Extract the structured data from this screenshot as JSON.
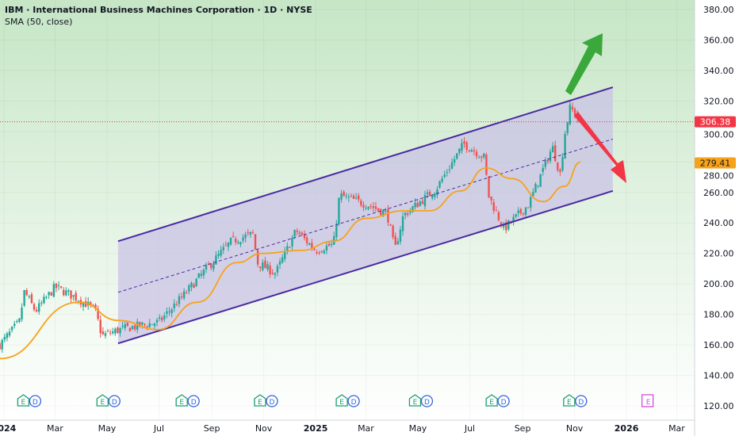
{
  "header": {
    "title": "IBM · International Business Machines Corporation · 1D · NYSE",
    "indicator": "SMA (50, close)"
  },
  "colors": {
    "up": "#26a69a",
    "down": "#ef5350",
    "sma": "#f7a21b",
    "channel": "#4a2aa0",
    "channel_fill": "#c9c3e6",
    "last_price_bg": "#f23645",
    "sma_label_bg": "#f7a21b",
    "arrow_up": "#3aa83a",
    "arrow_down": "#f23645",
    "earnings": "#1a9e6e",
    "dividend": "#3366dd",
    "future_earnings": "#d04ed8"
  },
  "chart_data": {
    "type": "candlestick",
    "ylim": [
      120,
      380
    ],
    "y_ticks": [
      "380.00",
      "360.00",
      "340.00",
      "320.00",
      "300.00",
      "280.00",
      "260.00",
      "240.00",
      "220.00",
      "200.00",
      "180.00",
      "160.00",
      "140.00",
      "120.00"
    ],
    "x_ticks": [
      {
        "label": "2024",
        "date": "2024-01-01",
        "bold": true
      },
      {
        "label": "Mar",
        "date": "2024-03-01"
      },
      {
        "label": "May",
        "date": "2024-05-01"
      },
      {
        "label": "Jul",
        "date": "2024-07-01"
      },
      {
        "label": "Sep",
        "date": "2024-09-01"
      },
      {
        "label": "Nov",
        "date": "2024-11-01"
      },
      {
        "label": "2025",
        "date": "2025-01-01",
        "bold": true
      },
      {
        "label": "Mar",
        "date": "2025-03-01"
      },
      {
        "label": "May",
        "date": "2025-05-01"
      },
      {
        "label": "Jul",
        "date": "2025-07-01"
      },
      {
        "label": "Sep",
        "date": "2025-09-01"
      },
      {
        "label": "Nov",
        "date": "2025-11-01"
      },
      {
        "label": "2026",
        "date": "2026-01-01",
        "bold": true
      },
      {
        "label": "Mar",
        "date": "2026-03-01"
      }
    ],
    "price_path": [
      [
        "2023-12-27",
        160
      ],
      [
        "2024-01-19",
        175
      ],
      [
        "2024-01-25",
        195
      ],
      [
        "2024-02-07",
        182
      ],
      [
        "2024-03-01",
        198
      ],
      [
        "2024-03-29",
        190
      ],
      [
        "2024-04-17",
        183
      ],
      [
        "2024-04-25",
        166
      ],
      [
        "2024-05-15",
        170
      ],
      [
        "2024-07-01",
        175
      ],
      [
        "2024-07-29",
        192
      ],
      [
        "2024-08-26",
        210
      ],
      [
        "2024-09-24",
        228
      ],
      [
        "2024-10-20",
        233
      ],
      [
        "2024-10-24",
        214
      ],
      [
        "2024-11-15",
        207
      ],
      [
        "2024-12-09",
        235
      ],
      [
        "2025-01-01",
        222
      ],
      [
        "2025-01-22",
        226
      ],
      [
        "2025-01-29",
        258
      ],
      [
        "2025-03-03",
        252
      ],
      [
        "2025-03-26",
        246
      ],
      [
        "2025-04-04",
        222
      ],
      [
        "2025-04-14",
        245
      ],
      [
        "2025-05-22",
        262
      ],
      [
        "2025-06-24",
        292
      ],
      [
        "2025-07-18",
        283
      ],
      [
        "2025-07-23",
        258
      ],
      [
        "2025-08-10",
        236
      ],
      [
        "2025-09-08",
        252
      ],
      [
        "2025-10-06",
        290
      ],
      [
        "2025-10-15",
        272
      ],
      [
        "2025-10-21",
        300
      ],
      [
        "2025-10-27",
        316
      ],
      [
        "2025-11-08",
        306
      ]
    ],
    "sma_path": [
      [
        "2023-12-27",
        151
      ],
      [
        "2024-03-29",
        188
      ],
      [
        "2024-05-15",
        176
      ],
      [
        "2024-06-30",
        170
      ],
      [
        "2024-08-15",
        188
      ],
      [
        "2024-10-01",
        214
      ],
      [
        "2024-10-30",
        220
      ],
      [
        "2024-12-15",
        222
      ],
      [
        "2025-01-22",
        228
      ],
      [
        "2025-03-01",
        243
      ],
      [
        "2025-04-15",
        248
      ],
      [
        "2025-05-15",
        248
      ],
      [
        "2025-06-20",
        261
      ],
      [
        "2025-07-20",
        276
      ],
      [
        "2025-08-20",
        269
      ],
      [
        "2025-09-25",
        254
      ],
      [
        "2025-10-20",
        264
      ],
      [
        "2025-11-08",
        280
      ]
    ],
    "channel": {
      "upper": [
        [
          "2024-05-14",
          228
        ],
        [
          "2025-12-16",
          329
        ]
      ],
      "lower": [
        [
          "2024-05-14",
          161
        ],
        [
          "2025-12-16",
          261
        ]
      ]
    },
    "last_price": "306.38",
    "sma_value": "279.41",
    "events": [
      {
        "date": "2024-01-20",
        "type": "ED"
      },
      {
        "date": "2024-04-22",
        "type": "ED"
      },
      {
        "date": "2024-07-24",
        "type": "ED"
      },
      {
        "date": "2024-10-24",
        "type": "ED"
      },
      {
        "date": "2025-01-28",
        "type": "ED"
      },
      {
        "date": "2025-04-24",
        "type": "ED"
      },
      {
        "date": "2025-07-23",
        "type": "ED"
      },
      {
        "date": "2025-10-22",
        "type": "ED"
      },
      {
        "date": "2026-01-22",
        "type": "E-future"
      }
    ],
    "event_labels": {
      "earnings": "E",
      "dividend": "D"
    }
  }
}
